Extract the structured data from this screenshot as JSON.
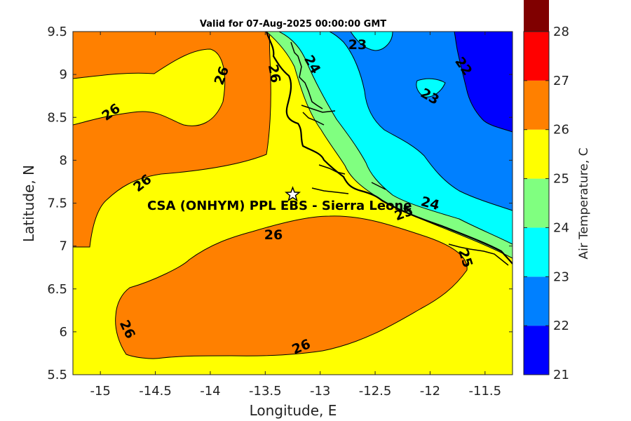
{
  "title": "Valid for 07-Aug-2025 00:00:00 GMT",
  "chart_data": {
    "type": "contour-map",
    "xlabel": "Longitude, E",
    "ylabel": "Latitude, N",
    "xlim": [
      -15.25,
      -11.25
    ],
    "ylim": [
      5.5,
      9.5
    ],
    "xticks": [
      "-15",
      "-14.5",
      "-14",
      "-13.5",
      "-13",
      "-12.5",
      "-12",
      "-11.5"
    ],
    "yticks": [
      "5.5",
      "6",
      "6.5",
      "7",
      "7.5",
      "8",
      "8.5",
      "9",
      "9.5"
    ],
    "colorbar": {
      "label": "Air Temperature, C",
      "range": [
        21,
        28
      ],
      "ticks": [
        "21",
        "22",
        "23",
        "24",
        "25",
        "26",
        "27",
        "28"
      ],
      "colors": [
        "#0000ff",
        "#0080ff",
        "#00ffff",
        "#80ff80",
        "#ffff00",
        "#ff8000",
        "#ff0000",
        "#800000"
      ]
    },
    "contour_labels": [
      "26",
      "26",
      "26",
      "26",
      "26",
      "26",
      "26",
      "25",
      "25",
      "24",
      "24",
      "23",
      "23",
      "22"
    ],
    "site": {
      "label": "CSA (ONHYM) PPL EBS  - Sierra Leone",
      "lon": -13.25,
      "lat": 7.6
    }
  }
}
